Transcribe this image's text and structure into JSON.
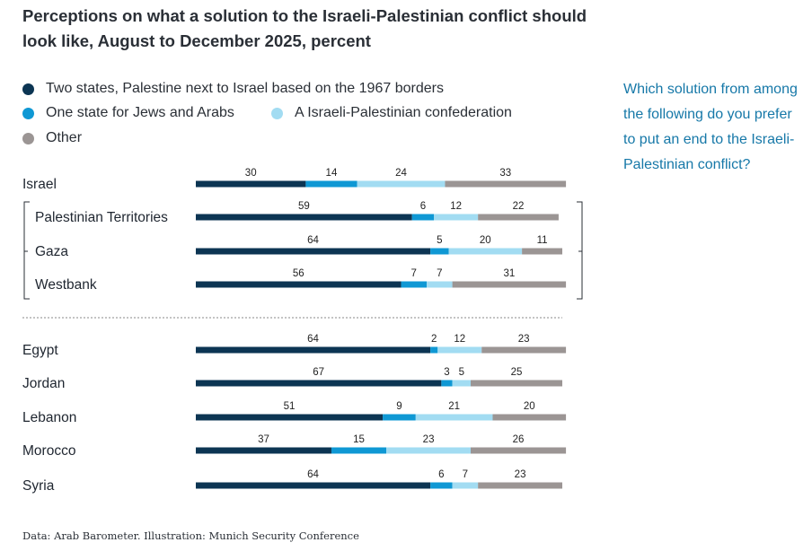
{
  "chart_data": {
    "type": "bar",
    "orientation": "horizontal-stacked",
    "title": "Perceptions on what a solution to the Israeli-Palestinian conflict should look like, August to December 2025, percent",
    "question": "Which solution from among the following do you prefer to put an end to the Israeli-Palestinian conflict?",
    "series": [
      {
        "name": "Two states, Palestine next to Israel based on the 1967 borders",
        "color": "#0c3553"
      },
      {
        "name": "One state for Jews and Arabs",
        "color": "#0f98d4"
      },
      {
        "name": "A Israeli-Palestinian confederation",
        "color": "#a2dcf2"
      },
      {
        "name": "Other",
        "color": "#9b9594"
      }
    ],
    "categories": [
      "Israel",
      "Palestinian Territories",
      "Gaza",
      "Westbank",
      "Egypt",
      "Jordan",
      "Lebanon",
      "Morocco",
      "Syria"
    ],
    "values": [
      [
        30,
        14,
        24,
        33
      ],
      [
        59,
        6,
        12,
        22
      ],
      [
        64,
        5,
        20,
        11
      ],
      [
        56,
        7,
        7,
        31
      ],
      [
        64,
        2,
        12,
        23
      ],
      [
        67,
        3,
        5,
        25
      ],
      [
        51,
        9,
        21,
        20
      ],
      [
        37,
        15,
        23,
        26
      ],
      [
        64,
        6,
        7,
        23
      ]
    ],
    "grouped": [
      "Palestinian Territories",
      "Gaza",
      "Westbank"
    ],
    "xlim": [
      0,
      100
    ]
  },
  "source": "Data: Arab Barometer. Illustration: Munich Security Conference"
}
